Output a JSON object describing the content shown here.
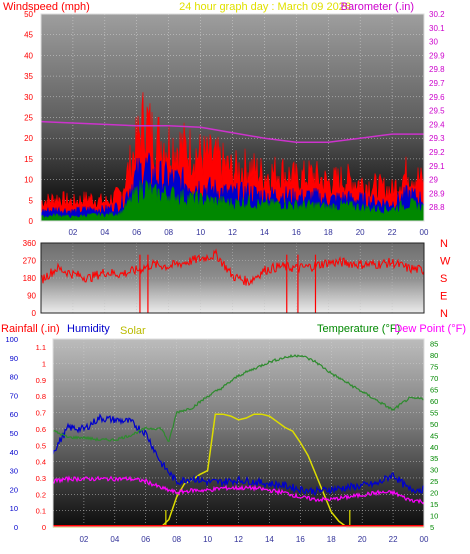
{
  "header": {
    "windspeed_label": "Windspeed (mph)",
    "title": "24 hour graph day : March 09 2026",
    "barometer_label": "Barometer (.in)"
  },
  "direction_letters": [
    "N",
    "W",
    "S",
    "E",
    "N"
  ],
  "lower_header": {
    "rainfall_label": "Rainfall (.in)",
    "humidity_label": "Humidity",
    "solar_label": "Solar",
    "temperature_label": "Temperature (°F)",
    "dewpoint_label": "Dew Point (°F)"
  },
  "colors": {
    "wind_gust": "#ff0000",
    "wind_avg": "#0000cc",
    "wind_low": "#008800",
    "barometer": "#cc33cc",
    "direction": "#ff0000",
    "temperature": "#2e8b2e",
    "humidity": "#0000cc",
    "solar": "#dddd00",
    "dewpoint": "#ff00ff",
    "rainfall": "#ff0000",
    "title": "#e0e000"
  },
  "chart_data": [
    {
      "type": "area",
      "name": "wind",
      "x_ticks": [
        "02",
        "04",
        "06",
        "08",
        "10",
        "12",
        "14",
        "16",
        "18",
        "20",
        "22",
        "00"
      ],
      "y_left_ticks": [
        "0",
        "5",
        "10",
        "15",
        "20",
        "25",
        "30",
        "35",
        "40",
        "45",
        "50"
      ],
      "y_right_ticks": [
        "28.8",
        "28.9",
        "29",
        "29.1",
        "29.2",
        "29.3",
        "29.4",
        "29.5",
        "29.6",
        "29.7",
        "29.8",
        "29.9",
        "30",
        "30.1",
        "30.2"
      ],
      "ylim_left": [
        0,
        50
      ],
      "ylim_right": [
        28.7,
        30.2
      ],
      "hours": [
        0,
        1,
        2,
        3,
        4,
        5,
        6,
        6.5,
        7,
        8,
        9,
        10,
        11,
        12,
        13,
        14,
        15,
        16,
        17,
        18,
        19,
        20,
        21,
        22,
        23,
        24
      ],
      "series": [
        {
          "name": "Windspeed (mph)",
          "role": "gust",
          "values": [
            5,
            6,
            5,
            6,
            5,
            7,
            20,
            27,
            22,
            20,
            19,
            17,
            16,
            13,
            14,
            12,
            13,
            11,
            12,
            10,
            11,
            10,
            9,
            8,
            13,
            10
          ]
        },
        {
          "name": "Windspeed (mph)",
          "role": "average",
          "values": [
            2.5,
            3,
            2.5,
            3,
            3,
            4,
            12,
            14,
            12,
            11,
            10,
            9,
            8,
            7,
            7.5,
            6.5,
            7,
            6,
            6.5,
            5.5,
            6,
            5.5,
            5,
            4.5,
            7,
            5.5
          ]
        },
        {
          "name": "Windspeed (mph)",
          "role": "low",
          "values": [
            1,
            1.5,
            1,
            1.5,
            1.5,
            2,
            7,
            9,
            7,
            7,
            6,
            5.5,
            5,
            4.5,
            5,
            4,
            4.5,
            4,
            4,
            3.5,
            4,
            3.5,
            3,
            3,
            4.5,
            3.5
          ]
        },
        {
          "name": "Barometer (.in)",
          "axis": "right",
          "x": [
            0,
            2,
            4,
            6,
            8,
            10,
            12,
            14,
            16,
            18,
            20,
            22,
            24
          ],
          "values": [
            29.42,
            29.41,
            29.4,
            29.39,
            29.39,
            29.38,
            29.34,
            29.3,
            29.27,
            29.27,
            29.3,
            29.33,
            29.33
          ]
        }
      ]
    },
    {
      "type": "line",
      "name": "wind direction",
      "y_ticks": [
        "0",
        "90",
        "180",
        "270",
        "360"
      ],
      "ylim": [
        0,
        360
      ],
      "x": [
        0,
        1,
        2,
        3,
        4,
        5,
        6,
        7,
        8,
        9,
        10,
        11,
        12,
        13,
        14,
        15,
        16,
        17,
        18,
        19,
        20,
        21,
        22,
        23,
        24
      ],
      "values": [
        170,
        230,
        200,
        180,
        210,
        200,
        220,
        250,
        240,
        260,
        280,
        300,
        190,
        160,
        220,
        240,
        230,
        240,
        260,
        260,
        250,
        250,
        260,
        230,
        220
      ]
    },
    {
      "type": "line",
      "name": "temperature humidity solar",
      "y_left1_ticks": [
        "0",
        "10",
        "20",
        "30",
        "40",
        "50",
        "60",
        "70",
        "80",
        "90",
        "100"
      ],
      "y_left2_ticks": [
        "0",
        "0.1",
        "0.2",
        "0.3",
        "0.4",
        "0.5",
        "0.6",
        "0.7",
        "0.8",
        "0.9",
        "1",
        "1.1"
      ],
      "y_right_ticks": [
        "5",
        "10",
        "15",
        "20",
        "25",
        "30",
        "35",
        "40",
        "45",
        "50",
        "55",
        "60",
        "65",
        "70",
        "75",
        "80",
        "85"
      ],
      "x_ticks": [
        "02",
        "04",
        "06",
        "08",
        "10",
        "12",
        "14",
        "16",
        "18",
        "20",
        "22",
        "00"
      ],
      "ylim_humidity": [
        0,
        100
      ],
      "ylim_rain": [
        0,
        1.15
      ],
      "ylim_temp": [
        5,
        87
      ],
      "series": [
        {
          "name": "Temperature (°F)",
          "axis": "right",
          "x": [
            0,
            1,
            2,
            3,
            4,
            5,
            6,
            7,
            7.5,
            8,
            9,
            10,
            11,
            12,
            13,
            14,
            15,
            16,
            17,
            18,
            19,
            20,
            21,
            22,
            23,
            24
          ],
          "values": [
            47,
            44,
            44,
            43,
            43,
            45,
            48,
            48,
            42,
            55,
            57,
            62,
            66,
            71,
            74,
            77,
            79,
            80,
            77,
            72,
            68,
            64,
            60,
            56,
            61,
            61
          ]
        },
        {
          "name": "Humidity",
          "axis": "left1",
          "x": [
            0,
            1,
            2,
            3,
            4,
            5,
            6,
            7,
            8,
            9,
            10,
            11,
            12,
            13,
            14,
            15,
            16,
            17,
            18,
            19,
            20,
            21,
            22,
            23,
            24
          ],
          "values": [
            40,
            53,
            52,
            58,
            57,
            56,
            50,
            34,
            24,
            26,
            24,
            24,
            25,
            24,
            23,
            22,
            20,
            19,
            20,
            21,
            22,
            23,
            28,
            20,
            20
          ]
        },
        {
          "name": "Solar",
          "x": [
            0,
            7,
            7.5,
            8,
            8.5,
            9,
            9.5,
            10,
            10.5,
            11,
            11.5,
            12,
            12.5,
            13,
            13.5,
            14,
            14.5,
            15,
            15.5,
            16,
            16.5,
            17,
            17.5,
            18,
            18.5,
            19,
            24
          ],
          "values": [
            0,
            0,
            4,
            16,
            23,
            25,
            28,
            30,
            60,
            60,
            59,
            57,
            58,
            60,
            60,
            59,
            56,
            53,
            51,
            45,
            38,
            28,
            18,
            8,
            3,
            0,
            0
          ]
        },
        {
          "name": "Dew Point (°F)",
          "axis": "right",
          "x": [
            0,
            1,
            2,
            3,
            4,
            5,
            6,
            7,
            8,
            9,
            10,
            11,
            12,
            13,
            14,
            15,
            16,
            17,
            18,
            19,
            20,
            21,
            22,
            23,
            24
          ],
          "values": [
            25,
            26,
            26,
            26,
            26,
            26,
            25,
            22,
            20,
            21,
            21,
            22,
            22,
            22,
            21,
            20,
            18,
            17,
            17,
            18,
            19,
            20,
            20,
            17,
            16
          ]
        },
        {
          "name": "Rainfall (.in)",
          "axis": "left2",
          "x": [
            0,
            24
          ],
          "values": [
            0,
            0
          ]
        }
      ]
    }
  ]
}
